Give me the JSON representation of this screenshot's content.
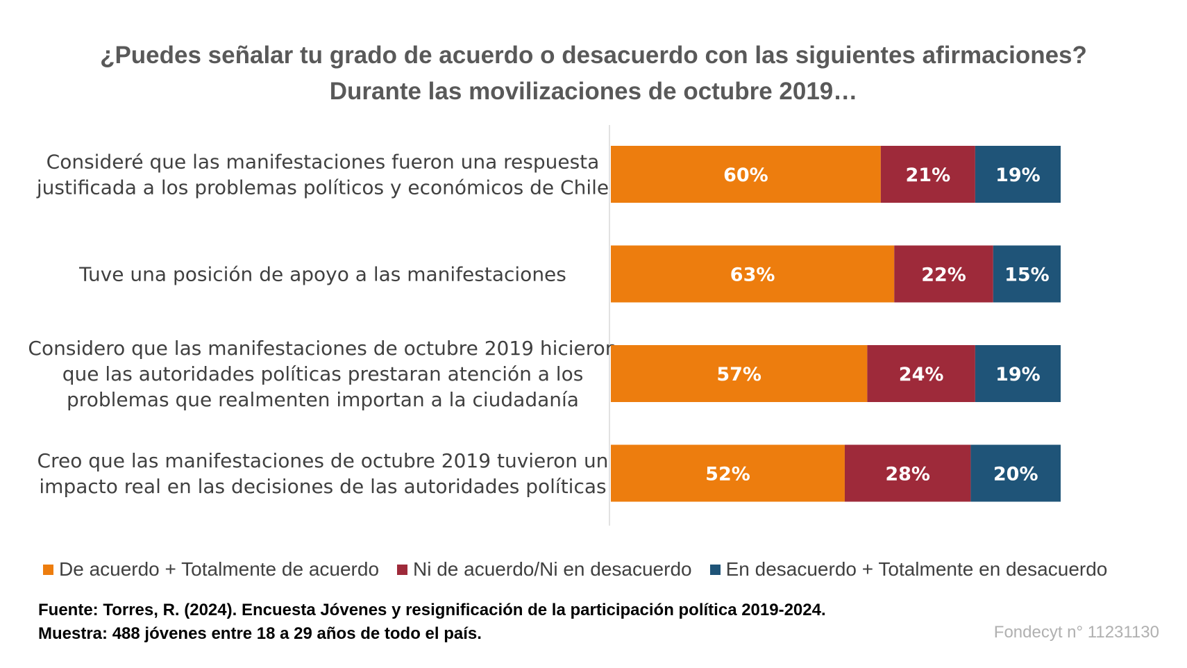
{
  "chart_data": {
    "type": "bar",
    "orientation": "horizontal",
    "stacked": "percent",
    "title": "¿Puedes señalar tu grado de acuerdo o desacuerdo con las siguientes afirmaciones?",
    "subtitle": "Durante las movilizaciones de octubre 2019…",
    "categories": [
      [
        "Consideré que las manifestaciones fueron una respuesta",
        "justificada a los problemas políticos y económicos de Chile"
      ],
      [
        "Tuve una posición de apoyo a las manifestaciones"
      ],
      [
        "Considero que las manifestaciones de octubre 2019 hicieron",
        "que las autoridades políticas prestaran atención a los",
        "problemas que realmenten importan a la ciudadanía"
      ],
      [
        "Creo que las manifestaciones de octubre 2019 tuvieron un",
        "impacto real en las decisiones de las autoridades políticas"
      ]
    ],
    "series": [
      {
        "name": "De acuerdo + Totalmente de acuerdo",
        "color": "#ED7D0E",
        "values": [
          60,
          63,
          57,
          52
        ]
      },
      {
        "name": "Ni de acuerdo/Ni en desacuerdo",
        "color": "#9E2A3A",
        "values": [
          21,
          22,
          24,
          28
        ]
      },
      {
        "name": "En desacuerdo + Totalmente en desacuerdo",
        "color": "#1F5478",
        "values": [
          19,
          15,
          19,
          20
        ]
      }
    ],
    "value_suffix": "%",
    "xlim": [
      0,
      100
    ],
    "legend_position": "bottom",
    "grid": false
  },
  "footer": {
    "source": "Fuente: Torres, R. (2024). Encuesta Jóvenes y resignificación de la participación política 2019-2024.",
    "sample": "Muestra: 488 jóvenes entre 18 a 29 años de todo el país.",
    "credit": "Fondecyt n° 11231130"
  }
}
